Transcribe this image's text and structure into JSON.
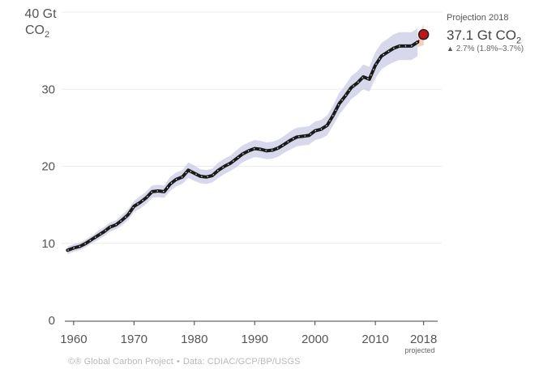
{
  "source": "©® Global Carbon Project",
  "data_credit": "Data: CDIAC/GCP/BP/USGS",
  "projection": {
    "label": "Projection 2018",
    "value_main": "37.1 Gt CO",
    "value_sub": "2",
    "change_symbol": "▲",
    "change_text": "2.7% (1.8%–3.7%)",
    "marker_color": "#c0161b"
  },
  "colors": {
    "line": "#1a1a1a",
    "band": "#c9cbe6",
    "band_projection": "#f2b8a2",
    "grid": "#ececec",
    "axis": "#444444"
  },
  "chart_data": {
    "type": "line",
    "title": "",
    "ylabel_line1": "40 Gt",
    "ylabel_line2_main": "CO",
    "ylabel_line2_sub": "2",
    "xlabel_note": "projected",
    "xlim": [
      1958,
      2021
    ],
    "ylim": [
      0,
      40
    ],
    "x_ticks": [
      1960,
      1970,
      1980,
      1990,
      2000,
      2010,
      2018
    ],
    "y_ticks": [
      0,
      10,
      20,
      30
    ],
    "grid": true,
    "series": [
      {
        "x": [
          1959,
          1960,
          1961,
          1962,
          1963,
          1964,
          1965,
          1966,
          1967,
          1968,
          1969,
          1970,
          1971,
          1972,
          1973,
          1974,
          1975,
          1976,
          1977,
          1978,
          1979,
          1980,
          1981,
          1982,
          1983,
          1984,
          1985,
          1986,
          1987,
          1988,
          1989,
          1990,
          1991,
          1992,
          1993,
          1994,
          1995,
          1996,
          1997,
          1998,
          1999,
          2000,
          2001,
          2002,
          2003,
          2004,
          2005,
          2006,
          2007,
          2008,
          2009,
          2010,
          2011,
          2012,
          2013,
          2014,
          2015,
          2016,
          2017
        ],
        "y": [
          9.1,
          9.4,
          9.6,
          10.0,
          10.5,
          11.0,
          11.5,
          12.1,
          12.4,
          13.0,
          13.7,
          14.8,
          15.3,
          15.9,
          16.7,
          16.8,
          16.7,
          17.7,
          18.3,
          18.6,
          19.5,
          19.1,
          18.7,
          18.6,
          18.8,
          19.5,
          20.0,
          20.4,
          21.0,
          21.6,
          22.0,
          22.3,
          22.2,
          22.0,
          22.1,
          22.4,
          22.9,
          23.4,
          23.8,
          23.9,
          24.0,
          24.6,
          24.8,
          25.3,
          26.6,
          28.1,
          29.1,
          30.2,
          30.8,
          31.6,
          31.3,
          33.1,
          34.3,
          34.8,
          35.3,
          35.6,
          35.6,
          35.6,
          36.1
        ],
        "band_halfwidth": [
          0.5,
          0.5,
          0.5,
          0.5,
          0.5,
          0.6,
          0.6,
          0.6,
          0.6,
          0.7,
          0.7,
          0.7,
          0.8,
          0.8,
          0.8,
          0.8,
          0.8,
          0.9,
          0.9,
          0.9,
          1.0,
          1.0,
          0.9,
          0.9,
          0.9,
          1.0,
          1.0,
          1.0,
          1.1,
          1.1,
          1.1,
          1.1,
          1.1,
          1.1,
          1.1,
          1.1,
          1.1,
          1.2,
          1.2,
          1.2,
          1.2,
          1.2,
          1.2,
          1.3,
          1.3,
          1.4,
          1.4,
          1.5,
          1.5,
          1.6,
          1.6,
          1.7,
          1.7,
          1.7,
          1.8,
          1.8,
          1.8,
          1.8,
          1.8
        ]
      },
      {
        "name": "projection",
        "x": [
          2017,
          2018
        ],
        "y": [
          36.1,
          37.1
        ],
        "band_low": [
          35.5,
          35.7
        ],
        "band_high": [
          36.7,
          38.4
        ]
      }
    ]
  }
}
